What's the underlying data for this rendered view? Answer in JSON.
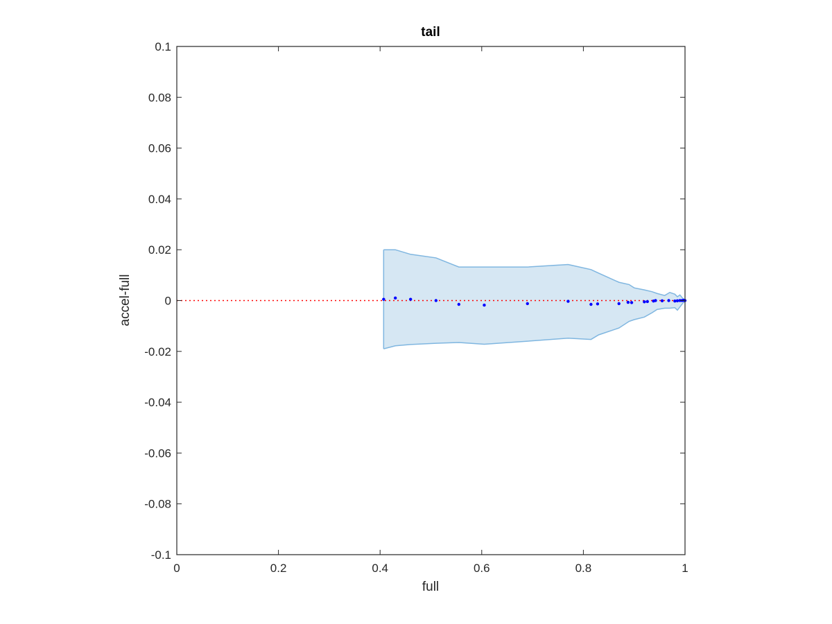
{
  "chart_data": {
    "type": "scatter",
    "title": "tail",
    "xlabel": "full",
    "ylabel": "accel-full",
    "xlim": [
      0,
      1
    ],
    "ylim": [
      -0.1,
      0.1
    ],
    "xticks": [
      "0",
      "0.2",
      "0.4",
      "0.6",
      "0.8",
      "1"
    ],
    "yticks": [
      "0.1",
      "0.08",
      "0.06",
      "0.04",
      "0.02",
      "0",
      "-0.02",
      "-0.04",
      "-0.06",
      "-0.08",
      "-0.1"
    ],
    "grid": false,
    "reference_line": {
      "y": 0,
      "color": "#ff0000",
      "style": "dotted"
    },
    "band": {
      "color": "#7fb6e0",
      "fill": "#d6e7f3",
      "x": [
        0.407,
        0.43,
        0.46,
        0.51,
        0.555,
        0.605,
        0.69,
        0.77,
        0.815,
        0.83,
        0.87,
        0.89,
        0.9,
        0.92,
        0.935,
        0.945,
        0.96,
        0.97,
        0.98,
        0.985,
        0.99,
        0.995,
        1.0
      ],
      "upper": [
        0.02,
        0.02,
        0.0182,
        0.0168,
        0.0132,
        0.0132,
        0.0132,
        0.0142,
        0.0122,
        0.0108,
        0.0072,
        0.0063,
        0.005,
        0.0042,
        0.0035,
        0.0028,
        0.002,
        0.0032,
        0.0025,
        0.0015,
        0.0022,
        0.001,
        0.0002
      ],
      "lower": [
        -0.019,
        -0.0178,
        -0.0173,
        -0.0168,
        -0.0165,
        -0.0172,
        -0.016,
        -0.0148,
        -0.0153,
        -0.0135,
        -0.0108,
        -0.0082,
        -0.0075,
        -0.0065,
        -0.0048,
        -0.0035,
        -0.003,
        -0.003,
        -0.0028,
        -0.0038,
        -0.0025,
        -0.0012,
        -0.0002
      ]
    },
    "series": [
      {
        "color": "#0000ff",
        "x": [
          0.407,
          0.43,
          0.46,
          0.51,
          0.555,
          0.605,
          0.69,
          0.77,
          0.815,
          0.828,
          0.87,
          0.888,
          0.895,
          0.92,
          0.926,
          0.938,
          0.942,
          0.955,
          0.968,
          0.98,
          0.985,
          0.99,
          0.994,
          0.997,
          1.0
        ],
        "y": [
          0.0005,
          0.001,
          0.0005,
          0.0,
          -0.0015,
          -0.0018,
          -0.0012,
          -0.0003,
          -0.0015,
          -0.0013,
          -0.0012,
          -0.0007,
          -0.0008,
          -0.0005,
          -0.0004,
          -0.0002,
          0.0,
          -0.0001,
          0.0,
          -0.0002,
          -0.0001,
          0.0,
          0.0,
          0.0001,
          0.0
        ]
      }
    ]
  }
}
